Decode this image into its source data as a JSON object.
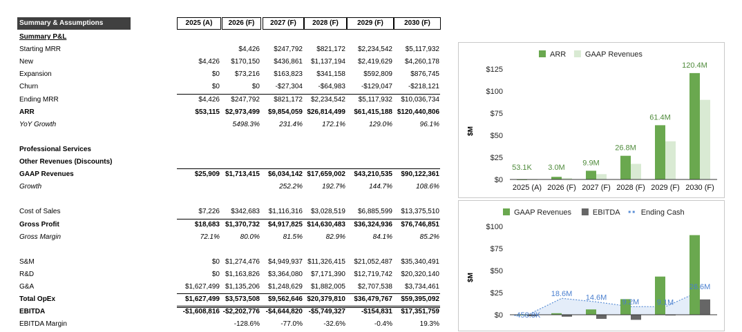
{
  "sheet": {
    "title": "Summary & Assumptions",
    "years": [
      "2025 (A)",
      "2026 (F)",
      "2027 (F)",
      "2028 (F)",
      "2029 (F)",
      "2030 (F)"
    ],
    "rows": [
      {
        "label": "Summary P&L",
        "style": "bold und",
        "values": [
          "",
          "",
          "",
          "",
          "",
          ""
        ]
      },
      {
        "label": "Starting MRR",
        "style": "",
        "values": [
          "",
          "$4,426",
          "$247,792",
          "$821,172",
          "$2,234,542",
          "$5,117,932"
        ]
      },
      {
        "label": "New",
        "style": "",
        "values": [
          "$4,426",
          "$170,150",
          "$436,861",
          "$1,137,194",
          "$2,419,629",
          "$4,260,178"
        ]
      },
      {
        "label": "Expansion",
        "style": "",
        "values": [
          "$0",
          "$73,216",
          "$163,823",
          "$341,158",
          "$592,809",
          "$876,745"
        ]
      },
      {
        "label": "Churn",
        "style": "",
        "values": [
          "$0",
          "$0",
          "-$27,304",
          "-$64,983",
          "-$129,047",
          "-$218,121"
        ]
      },
      {
        "label": "Ending MRR",
        "style": "",
        "values": [
          "$4,426",
          "$247,792",
          "$821,172",
          "$2,234,542",
          "$5,117,932",
          "$10,036,734"
        ]
      },
      {
        "label": "ARR",
        "style": "bold",
        "values": [
          "$53,115",
          "$2,973,499",
          "$9,854,059",
          "$26,814,499",
          "$61,415,188",
          "$120,440,806"
        ]
      },
      {
        "label": "YoY Growth",
        "style": "ital",
        "values": [
          "",
          "5498.3%",
          "231.4%",
          "172.1%",
          "129.0%",
          "96.1%"
        ]
      },
      {
        "label": "",
        "style": "",
        "values": [
          "",
          "",
          "",
          "",
          "",
          ""
        ]
      },
      {
        "label": "Professional Services",
        "style": "bold",
        "values": [
          "",
          "",
          "",
          "",
          "",
          ""
        ]
      },
      {
        "label": "Other Revenues (Discounts)",
        "style": "bold",
        "values": [
          "",
          "",
          "",
          "",
          "",
          ""
        ]
      },
      {
        "label": "GAAP Revenues",
        "style": "bold",
        "values": [
          "$25,909",
          "$1,713,415",
          "$6,034,142",
          "$17,659,002",
          "$43,210,535",
          "$90,122,361"
        ]
      },
      {
        "label": "Growth",
        "style": "ital",
        "values": [
          "",
          "",
          "252.2%",
          "192.7%",
          "144.7%",
          "108.6%"
        ]
      },
      {
        "label": "",
        "style": "",
        "values": [
          "",
          "",
          "",
          "",
          "",
          ""
        ]
      },
      {
        "label": "Cost of Sales",
        "style": "",
        "values": [
          "$7,226",
          "$342,683",
          "$1,116,316",
          "$3,028,519",
          "$6,885,599",
          "$13,375,510"
        ]
      },
      {
        "label": "Gross Profit",
        "style": "bold",
        "values": [
          "$18,683",
          "$1,370,732",
          "$4,917,825",
          "$14,630,483",
          "$36,324,936",
          "$76,746,851"
        ]
      },
      {
        "label": "Gross Margin",
        "style": "ital",
        "values": [
          "72.1%",
          "80.0%",
          "81.5%",
          "82.9%",
          "84.1%",
          "85.2%"
        ]
      },
      {
        "label": "",
        "style": "",
        "values": [
          "",
          "",
          "",
          "",
          "",
          ""
        ]
      },
      {
        "label": "S&M",
        "style": "",
        "values": [
          "$0",
          "$1,274,476",
          "$4,949,937",
          "$11,326,415",
          "$21,052,487",
          "$35,340,491"
        ]
      },
      {
        "label": "R&D",
        "style": "",
        "values": [
          "$0",
          "$1,163,826",
          "$3,364,080",
          "$7,171,390",
          "$12,719,742",
          "$20,320,140"
        ]
      },
      {
        "label": "G&A",
        "style": "",
        "values": [
          "$1,627,499",
          "$1,135,206",
          "$1,248,629",
          "$1,882,005",
          "$2,707,538",
          "$3,734,461"
        ]
      },
      {
        "label": "Total OpEx",
        "style": "bold",
        "values": [
          "$1,627,499",
          "$3,573,508",
          "$9,562,646",
          "$20,379,810",
          "$36,479,767",
          "$59,395,092"
        ]
      },
      {
        "label": "EBITDA",
        "style": "bold",
        "values": [
          "-$1,608,816",
          "-$2,202,776",
          "-$4,644,820",
          "-$5,749,327",
          "-$154,831",
          "$17,351,759"
        ]
      },
      {
        "label": "EBITDA Margin",
        "style": "",
        "values": [
          "",
          "-128.6%",
          "-77.0%",
          "-32.6%",
          "-0.4%",
          "19.3%"
        ]
      }
    ]
  },
  "chart_data": [
    {
      "type": "bar",
      "categories": [
        "2025 (A)",
        "2026 (F)",
        "2027 (F)",
        "2028 (F)",
        "2029 (F)",
        "2030 (F)"
      ],
      "series": [
        {
          "name": "ARR",
          "color": "#6aa84f",
          "values": [
            0.053,
            2.97,
            9.85,
            26.8,
            61.4,
            120.4
          ]
        },
        {
          "name": "GAAP Revenues",
          "color": "#d9ead3",
          "values": [
            0.026,
            1.71,
            6.03,
            17.66,
            43.21,
            90.12
          ]
        }
      ],
      "data_labels": [
        "53.1K",
        "3.0M",
        "9.9M",
        "26.8M",
        "61.4M",
        "120.4M"
      ],
      "ylabel": "$M",
      "yticks": [
        "$0",
        "$25",
        "$50",
        "$75",
        "$100",
        "$125"
      ],
      "ylim": [
        0,
        125
      ],
      "legend": "top"
    },
    {
      "type": "bar",
      "categories": [
        "2025 (A)",
        "2026 (F)",
        "2027 (F)",
        "2028 (F)",
        "2029 (F)",
        "2030 (F)"
      ],
      "series": [
        {
          "name": "GAAP Revenues",
          "kind": "bar",
          "color": "#6aa84f",
          "values": [
            0.026,
            1.71,
            6.03,
            17.66,
            43.21,
            90.12
          ]
        },
        {
          "name": "EBITDA",
          "kind": "bar",
          "color": "#666666",
          "values": [
            -1.61,
            -2.2,
            -4.64,
            -5.75,
            -0.15,
            17.35
          ]
        },
        {
          "name": "Ending Cash",
          "kind": "dashed-area",
          "color": "#5b8fd6",
          "values": [
            -0.459,
            18.6,
            14.6,
            9.2,
            9.1,
            26.6
          ]
        }
      ],
      "data_labels": [
        "-458.8K",
        "18.6M",
        "14.6M",
        "9.2M",
        "9.1M",
        "26.6M"
      ],
      "ylabel": "$M",
      "yticks": [
        "$0",
        "$25",
        "$50",
        "$75",
        "$100"
      ],
      "ylim": [
        0,
        100
      ],
      "legend": "top"
    }
  ]
}
